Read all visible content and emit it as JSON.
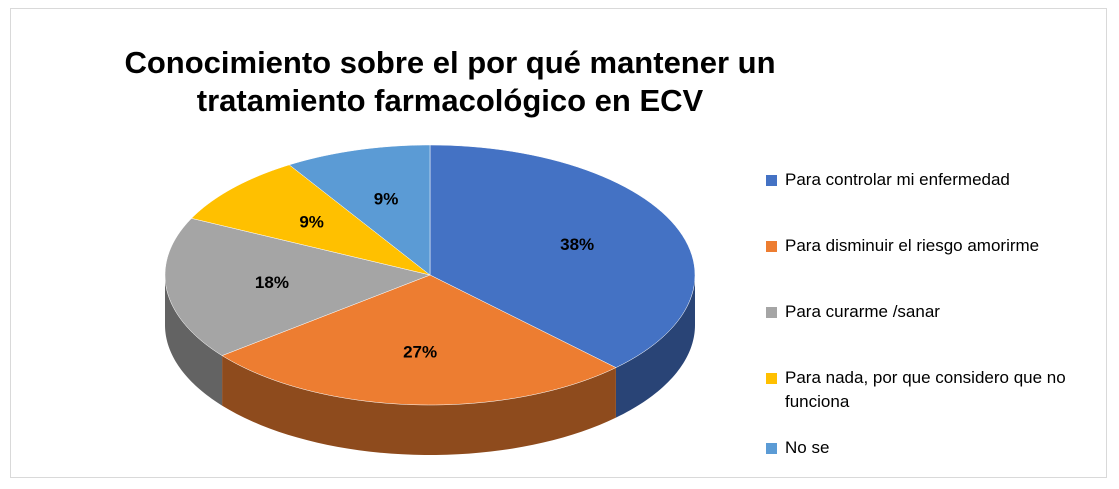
{
  "chart_data": {
    "type": "pie",
    "title": "Conocimiento sobre el por qué mantener un tratamiento farmacológico en ECV",
    "categories": [
      "Para controlar mi enfermedad",
      "Para disminuir el riesgo amorirme",
      "Para curarme /sanar",
      "Para nada, por que considero que no funciona",
      "No se"
    ],
    "values": [
      38,
      27,
      18,
      9,
      9
    ],
    "value_labels": [
      "38%",
      "27%",
      "18%",
      "9%",
      "9%"
    ],
    "colors": [
      "#4472c4",
      "#ed7d31",
      "#a5a5a5",
      "#ffc000",
      "#5b9bd5"
    ],
    "legend": "right"
  }
}
